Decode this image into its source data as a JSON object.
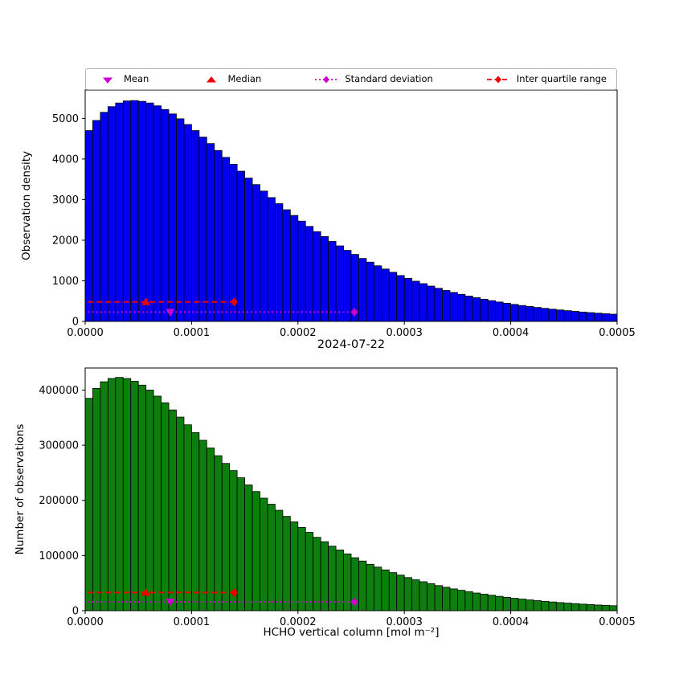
{
  "title": "2024-07-22",
  "colors": {
    "bar_blue": "#0000ee",
    "bar_green": "#0e7f0e",
    "magenta": "#cc00cc",
    "red": "#ee0000",
    "bar_edge": "#000000"
  },
  "legend": {
    "items": [
      {
        "label": "Mean",
        "marker": "triangle-down",
        "color": "#cc00cc"
      },
      {
        "label": "Median",
        "marker": "triangle-up",
        "color": "#ee0000"
      },
      {
        "label": "Standard deviation",
        "marker": "diamond-dotted-line",
        "color": "#cc00cc"
      },
      {
        "label": "Inter quartile range",
        "marker": "diamond-dashed-line",
        "color": "#ee0000"
      }
    ]
  },
  "chart_data": [
    {
      "type": "bar",
      "subtype": "histogram",
      "title": "",
      "ylabel": "Observation density",
      "xlabel": "",
      "xlim": [
        0,
        0.0005
      ],
      "ylim": [
        0,
        5700
      ],
      "yticks": [
        0,
        1000,
        2000,
        3000,
        4000,
        5000
      ],
      "xticks": [
        0,
        0.0001,
        0.0002,
        0.0003,
        0.0004,
        0.0005
      ],
      "xtick_labels": [
        "0.0000",
        "0.0001",
        "0.0002",
        "0.0003",
        "0.0004",
        "0.0005"
      ],
      "bar_color": "#0000ee",
      "values": [
        4700,
        4950,
        5150,
        5290,
        5380,
        5430,
        5440,
        5420,
        5380,
        5310,
        5220,
        5110,
        4990,
        4850,
        4700,
        4540,
        4380,
        4210,
        4040,
        3870,
        3700,
        3530,
        3370,
        3210,
        3050,
        2900,
        2750,
        2610,
        2470,
        2340,
        2210,
        2090,
        1970,
        1860,
        1750,
        1650,
        1550,
        1460,
        1370,
        1290,
        1210,
        1130,
        1060,
        990,
        930,
        870,
        815,
        762,
        713,
        667,
        624,
        584,
        546,
        511,
        478,
        447,
        419,
        392,
        367,
        344,
        322,
        301,
        282,
        264,
        247,
        231,
        217,
        203,
        190,
        178
      ],
      "stats": {
        "mean_x": 8e-05,
        "median_x": 5.7e-05,
        "std_line": {
          "x1": 2.5e-06,
          "x2": 0.000253,
          "y": 230
        },
        "iqr_line": {
          "x1": 2.5e-06,
          "x2": 0.00014,
          "y": 480
        }
      }
    },
    {
      "type": "bar",
      "subtype": "histogram",
      "title": "",
      "ylabel": "Number of observations",
      "xlabel": "HCHO vertical column [mol m⁻²]",
      "xlim": [
        0,
        0.0005
      ],
      "ylim": [
        0,
        440000
      ],
      "yticks": [
        0,
        100000,
        200000,
        300000,
        400000
      ],
      "xticks": [
        0,
        0.0001,
        0.0002,
        0.0003,
        0.0004,
        0.0005
      ],
      "xtick_labels": [
        "0.0000",
        "0.0001",
        "0.0002",
        "0.0003",
        "0.0004",
        "0.0005"
      ],
      "bar_color": "#0e7f0e",
      "values": [
        385000,
        403000,
        415000,
        421000,
        423000,
        421000,
        416000,
        409000,
        400000,
        389000,
        377000,
        364000,
        351000,
        337000,
        323000,
        309000,
        295000,
        281000,
        267000,
        254000,
        241000,
        228000,
        216000,
        204000,
        193000,
        182000,
        171000,
        161000,
        151000,
        142000,
        133000,
        125000,
        117000,
        110000,
        103000,
        96000,
        90000,
        84000,
        79000,
        74000,
        69000,
        64500,
        60000,
        56000,
        52500,
        49000,
        45500,
        42500,
        39500,
        37000,
        34500,
        32000,
        30000,
        28000,
        26000,
        24200,
        22500,
        21000,
        19500,
        18200,
        17000,
        15800,
        14700,
        13700,
        12800,
        11900,
        11100,
        10300,
        9600,
        9000
      ],
      "stats": {
        "mean_x": 8e-05,
        "median_x": 5.7e-05,
        "std_line": {
          "x1": 2.5e-06,
          "x2": 0.000253,
          "y": 16000
        },
        "iqr_line": {
          "x1": 2.5e-06,
          "x2": 0.00014,
          "y": 33000
        }
      }
    }
  ]
}
